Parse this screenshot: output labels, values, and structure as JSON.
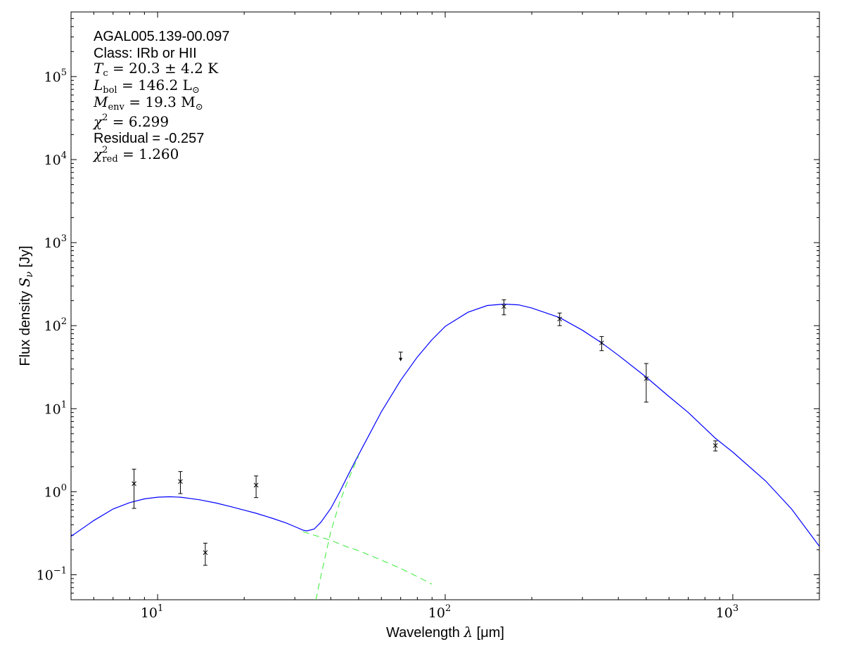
{
  "chart_data": {
    "type": "scatter",
    "xscale": "log",
    "yscale": "log",
    "xlim": [
      5,
      2000
    ],
    "ylim": [
      0.05,
      600000
    ],
    "xlabel": {
      "prefix": "Wavelength ",
      "symbol": "λ",
      "unit": " [μm]"
    },
    "ylabel": {
      "prefix": "Flux density ",
      "symbol": "S",
      "sub": "ν",
      "unit": " [Jy]"
    },
    "xticks": [
      {
        "base": "10",
        "exp": "1",
        "value": 10
      },
      {
        "base": "10",
        "exp": "2",
        "value": 100
      },
      {
        "base": "10",
        "exp": "3",
        "value": 1000
      }
    ],
    "yticks": [
      {
        "base": "10",
        "exp": "−1",
        "value": 0.1
      },
      {
        "base": "10",
        "exp": "0",
        "value": 1
      },
      {
        "base": "10",
        "exp": "1",
        "value": 10
      },
      {
        "base": "10",
        "exp": "2",
        "value": 100
      },
      {
        "base": "10",
        "exp": "3",
        "value": 1000
      },
      {
        "base": "10",
        "exp": "4",
        "value": 10000
      },
      {
        "base": "10",
        "exp": "5",
        "value": 100000
      }
    ],
    "annotations": {
      "source": "AGAL005.139-00.097",
      "class_text": "Class: IRb or HII",
      "tc": {
        "sym": "T",
        "sub": "c",
        "rest": " = 20.3 ± 4.2 K"
      },
      "lbol": {
        "sym": "L",
        "sub": "bol",
        "rest": " = 146.2 L",
        "tail": "⊙"
      },
      "menv": {
        "sym": "M",
        "sub": "env",
        "rest": " = 19.3 M",
        "tail": "⊙"
      },
      "chi2": {
        "sym": "χ",
        "sup": "2",
        "rest": " = 6.299"
      },
      "residual": "Residual = -0.257",
      "chi2red": {
        "sym": "χ",
        "sup": "2",
        "sub": "red",
        "rest": " = 1.260"
      }
    },
    "points": [
      {
        "x": 8.28,
        "y": 1.25,
        "ylo": 0.63,
        "yhi": 1.87
      },
      {
        "x": 12.0,
        "y": 1.33,
        "ylo": 0.95,
        "yhi": 1.75
      },
      {
        "x": 14.65,
        "y": 0.185,
        "ylo": 0.13,
        "yhi": 0.24
      },
      {
        "x": 22.0,
        "y": 1.2,
        "ylo": 0.85,
        "yhi": 1.55
      },
      {
        "x": 160,
        "y": 170,
        "ylo": 135,
        "yhi": 205
      },
      {
        "x": 250,
        "y": 120,
        "ylo": 100,
        "yhi": 142
      },
      {
        "x": 350,
        "y": 62,
        "ylo": 50,
        "yhi": 74
      },
      {
        "x": 500,
        "y": 23,
        "ylo": 12,
        "yhi": 35
      },
      {
        "x": 870,
        "y": 3.6,
        "ylo": 3.1,
        "yhi": 4.1
      }
    ],
    "upper_limits": [
      {
        "x": 70,
        "y": 48
      }
    ],
    "series": [
      {
        "style": "solid",
        "color": "#0000ff",
        "x": [
          5,
          6,
          7,
          8,
          9,
          10,
          11,
          12,
          14,
          16,
          18,
          20,
          22,
          25,
          28,
          30,
          32,
          33,
          35,
          37,
          40,
          43,
          46,
          50,
          55,
          60,
          70,
          80,
          90,
          100,
          120,
          140,
          160,
          180,
          200,
          250,
          300,
          350,
          400,
          500,
          600,
          700,
          870,
          1000,
          1300,
          1600,
          2000
        ],
        "y": [
          0.29,
          0.45,
          0.62,
          0.74,
          0.82,
          0.86,
          0.87,
          0.86,
          0.8,
          0.73,
          0.66,
          0.6,
          0.55,
          0.48,
          0.42,
          0.38,
          0.345,
          0.337,
          0.355,
          0.43,
          0.63,
          1.0,
          1.6,
          2.8,
          5.2,
          9.2,
          22,
          42,
          68,
          98,
          145,
          175,
          182,
          178,
          163,
          125,
          88,
          62,
          44,
          24,
          14,
          9.0,
          4.4,
          3.0,
          1.35,
          0.62,
          0.22
        ]
      },
      {
        "style": "dashed",
        "color": "#55ee55",
        "x": [
          32,
          35,
          40,
          45,
          50,
          55,
          60,
          65,
          70,
          75,
          80,
          90
        ],
        "y": [
          0.33,
          0.3,
          0.26,
          0.22,
          0.195,
          0.17,
          0.15,
          0.133,
          0.119,
          0.106,
          0.095,
          0.077
        ]
      },
      {
        "style": "dashed",
        "color": "#55ee55",
        "x": [
          35.5,
          37,
          40,
          43,
          46,
          50
        ],
        "y": [
          0.05,
          0.098,
          0.33,
          0.75,
          1.4,
          2.7
        ]
      }
    ]
  }
}
